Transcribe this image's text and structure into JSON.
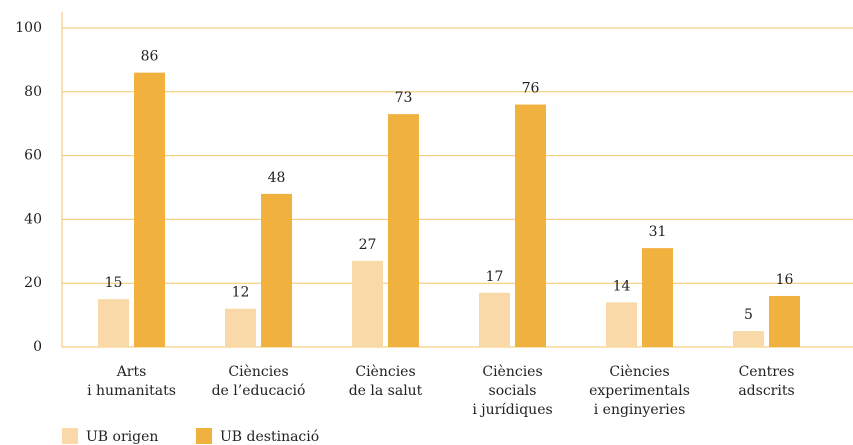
{
  "chart_data": {
    "type": "bar",
    "categories": [
      [
        "Arts",
        "i humanitats"
      ],
      [
        "Ciències",
        "de l’educació"
      ],
      [
        "Ciències",
        "de la salut"
      ],
      [
        "Ciències",
        "socials",
        "i jurídiques"
      ],
      [
        "Ciències",
        "experimentals",
        "i enginyeries"
      ],
      [
        "Centres",
        "adscrits"
      ]
    ],
    "series": [
      {
        "name": "UB origen",
        "color": "#f9d9a8",
        "values": [
          15,
          12,
          27,
          17,
          14,
          5
        ]
      },
      {
        "name": "UB destinació",
        "color": "#f0b13f",
        "values": [
          86,
          48,
          73,
          76,
          31,
          16
        ]
      }
    ],
    "ylim": [
      0,
      100
    ],
    "yticks": [
      0,
      20,
      40,
      60,
      80,
      100
    ],
    "grid": true,
    "legend": "bottom-left"
  }
}
